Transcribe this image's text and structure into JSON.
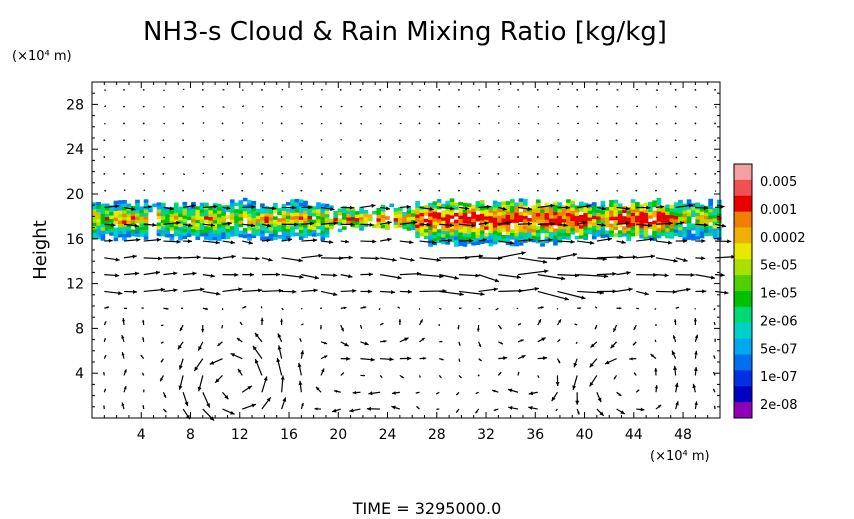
{
  "chart_data": {
    "type": "heatmap",
    "title": "NH3-s Cloud & Rain Mixing Ratio [kg/kg]",
    "ylabel": "Height",
    "y_unit": "(×10⁴ m)",
    "x_unit": "(×10⁴ m)",
    "x_ticks": [
      4,
      8,
      12,
      16,
      20,
      24,
      28,
      32,
      36,
      40,
      44,
      48
    ],
    "y_ticks": [
      4,
      8,
      12,
      16,
      20,
      24,
      28
    ],
    "xlim": [
      0,
      51
    ],
    "ylim": [
      0,
      30
    ],
    "footer": "TIME  =  3295000.0",
    "colorbar": {
      "labels": [
        "0.005",
        "0.001",
        "0.0002",
        "5e-05",
        "1e-05",
        "2e-06",
        "5e-07",
        "1e-07",
        "2e-08"
      ],
      "colors_top_to_bottom": [
        "#f5a0a0",
        "#f05050",
        "#e80000",
        "#f08000",
        "#f0b000",
        "#e8e800",
        "#a8e000",
        "#50d000",
        "#00c000",
        "#00d878",
        "#00d0c8",
        "#00a8f0",
        "#0070f0",
        "#0030e0",
        "#0000c0",
        "#9000b8"
      ]
    },
    "cloud_layer": {
      "y_range": [
        15.8,
        19.4
      ]
    },
    "vectors": "wind vector field overlaid on domain"
  }
}
